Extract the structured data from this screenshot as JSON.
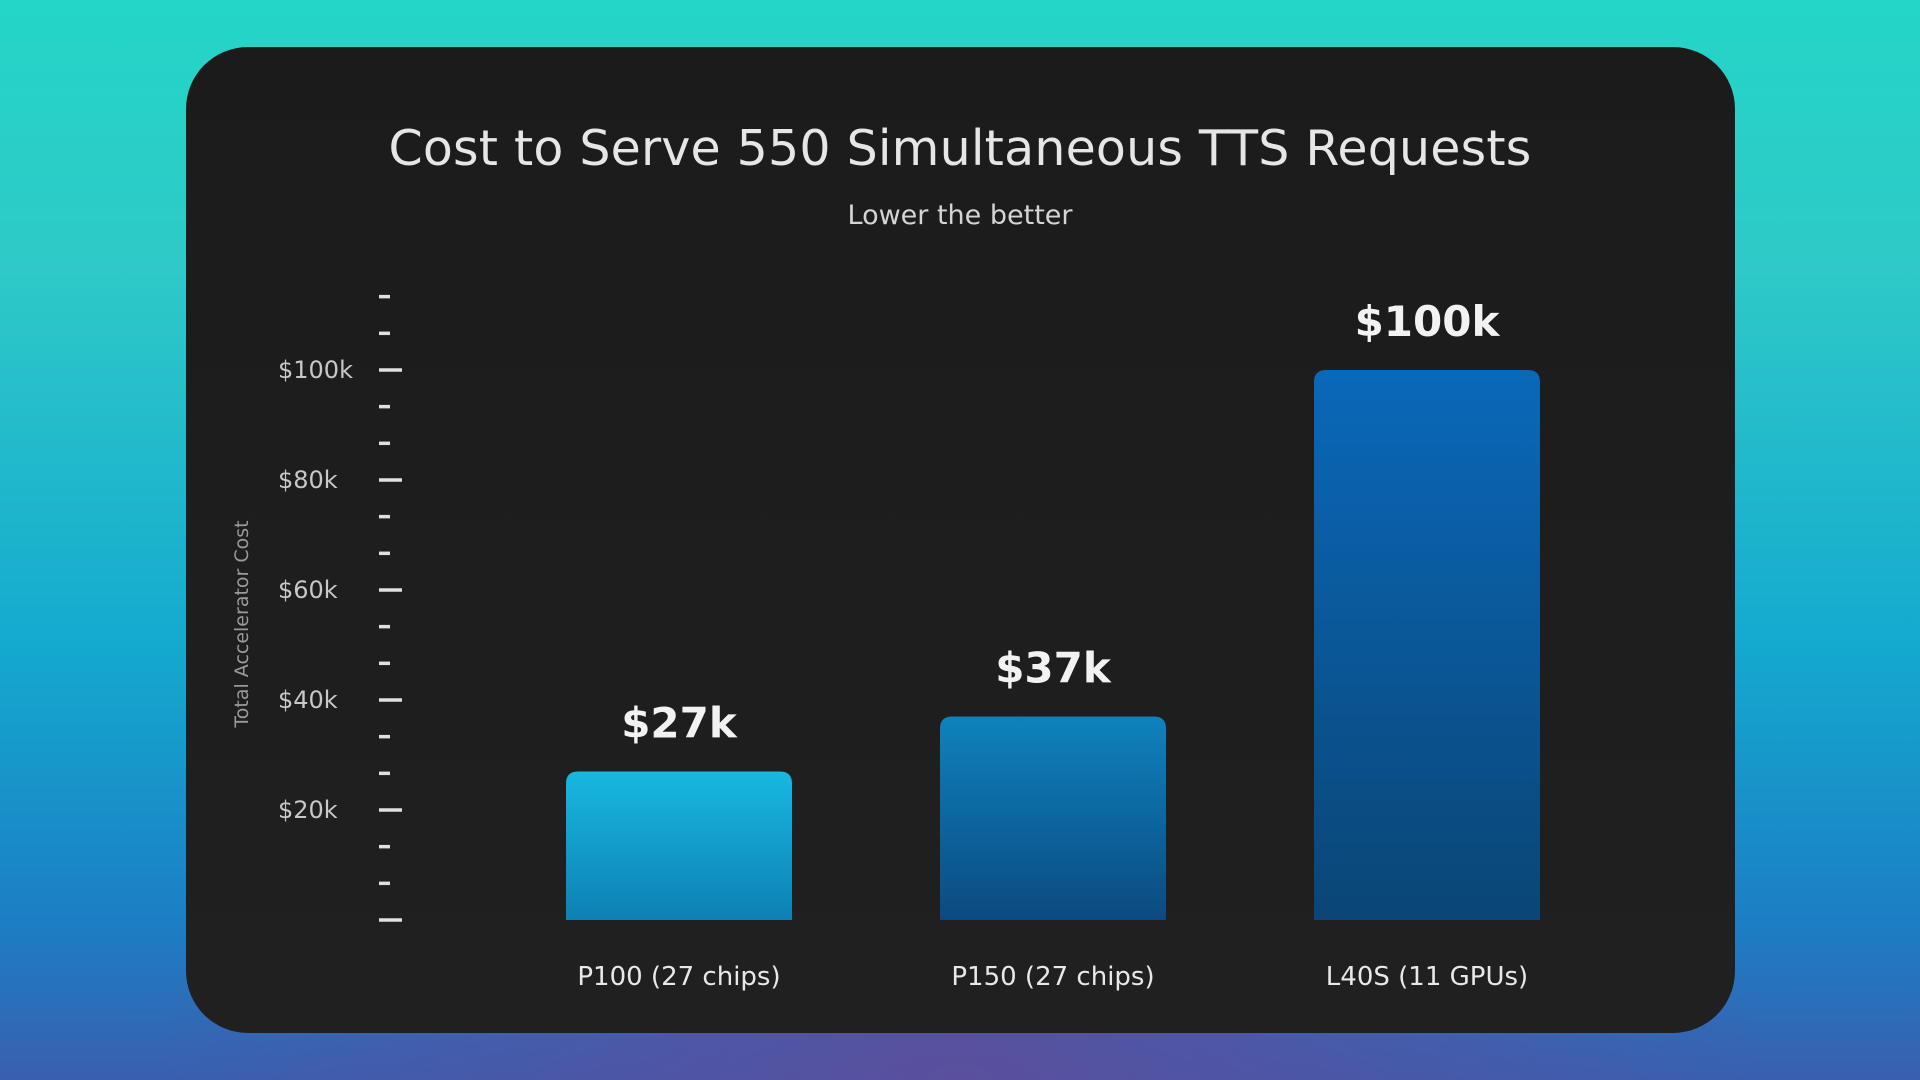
{
  "chart_data": {
    "type": "bar",
    "title": "Cost to Serve 550 Simultaneous TTS Requests",
    "subtitle": "Lower the better",
    "ylabel": "Total Accelerator Cost",
    "xlabel": "",
    "categories": [
      "P100 (27 chips)",
      "P150 (27 chips)",
      "L40S (11 GPUs)"
    ],
    "values": [
      27000,
      37000,
      100000
    ],
    "value_labels": [
      "$27k",
      "$37k",
      "$100k"
    ],
    "ylim": [
      0,
      115000
    ],
    "yticks": [
      20000,
      40000,
      60000,
      80000,
      100000
    ],
    "ytick_labels": [
      "$20k",
      "$40k",
      "$60k",
      "$80k",
      "$100k"
    ],
    "minor_tick_step": 6667,
    "grid": false,
    "legend": "none",
    "colors": {
      "bar_light": "#14b4dc",
      "bar_mid": "#0d7fb8",
      "bar_dark": "#0a3f72",
      "bar_l40s_top": "#0a68b8",
      "text": "#e6e6e6",
      "tick": "#e0e0e0"
    }
  }
}
